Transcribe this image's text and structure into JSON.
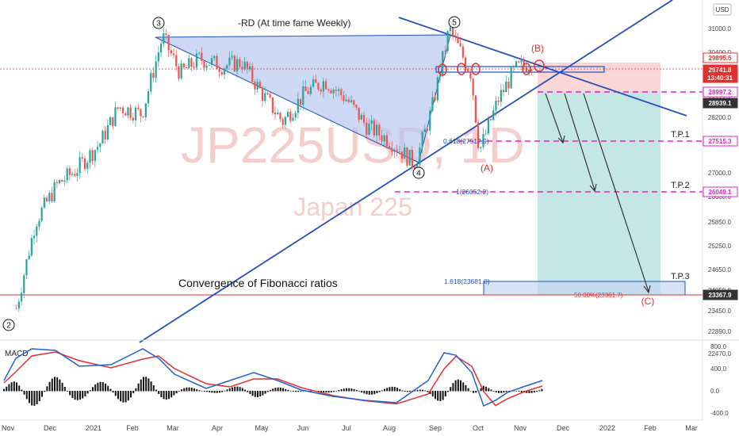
{
  "symbol": "JP225USD, 1D",
  "instrument": "Japan 225",
  "currency": "USD",
  "header_note": "-RD (At time fame Weekly)",
  "indicator_label": "MACD",
  "convergence_label": "Convergence of Fibonacci ratios",
  "price_axis_ticks": [
    "31000.0",
    "30400.0",
    "29800.0",
    "28600.0",
    "28200.0",
    "27600.0",
    "27000.0",
    "26600.0",
    "25850.0",
    "25250.0",
    "24650.0",
    "24050.0",
    "23450.0",
    "22890.0",
    "22470.0"
  ],
  "price_badges": [
    {
      "value": "29895.5",
      "kind": "outline"
    },
    {
      "value": "29741.8",
      "kind": "solid"
    },
    {
      "value": "13:40:31",
      "kind": "solid"
    },
    {
      "value": "28997.2",
      "kind": "outline"
    },
    {
      "value": "28939.1",
      "kind": "dark"
    },
    {
      "value": "27515.3",
      "kind": "outline"
    },
    {
      "value": "26049.1",
      "kind": "outline"
    },
    {
      "value": "23367.9",
      "kind": "dark"
    }
  ],
  "macd_ticks": [
    "800.0",
    "400.0",
    "0.0",
    "-400.0"
  ],
  "time_axis": [
    "Nov",
    "Dec",
    "2021",
    "Feb",
    "Mar",
    "Apr",
    "May",
    "Jun",
    "Jul",
    "Aug",
    "Sep",
    "Oct",
    "Nov",
    "Dec",
    "2022",
    "Feb",
    "Mar"
  ],
  "wave_labels": [
    "2",
    "3",
    "4",
    "5"
  ],
  "corrective_labels": [
    "(A)",
    "(B)",
    "(C)"
  ],
  "targets": [
    "T.P.1",
    "T.P.2",
    "T.P.3"
  ],
  "fib_labels": [
    "0.618(27517.9)",
    "1(26052.2)",
    "1.618(23681.0)",
    "50.00%(23361.7)"
  ],
  "colors": {
    "red": "#e03030",
    "blue": "#2050c0",
    "magenta": "#e020c0",
    "green": "#b2dfdb",
    "pink": "#f8c8c8",
    "candle_up": "#26a69a",
    "candle_down": "#ef5350"
  },
  "chart_data": {
    "type": "candlestick",
    "title": "JP225USD, 1D",
    "ylim": [
      22300,
      31300
    ],
    "close_path": [
      [
        "2020-11-01",
        23050
      ],
      [
        "2020-11-15",
        25400
      ],
      [
        "2020-12-01",
        26400
      ],
      [
        "2020-12-15",
        26800
      ],
      [
        "2021-01-01",
        27500
      ],
      [
        "2021-01-15",
        28500
      ],
      [
        "2021-02-01",
        28300
      ],
      [
        "2021-02-16",
        30400
      ],
      [
        "2021-03-01",
        29400
      ],
      [
        "2021-03-15",
        29800
      ],
      [
        "2021-04-01",
        29600
      ],
      [
        "2021-04-15",
        29700
      ],
      [
        "2021-05-01",
        28800
      ],
      [
        "2021-05-15",
        28100
      ],
      [
        "2021-06-01",
        28900
      ],
      [
        "2021-06-15",
        29200
      ],
      [
        "2021-07-01",
        28700
      ],
      [
        "2021-07-15",
        28000
      ],
      [
        "2021-08-01",
        27600
      ],
      [
        "2021-08-20",
        26950
      ],
      [
        "2021-09-01",
        28400
      ],
      [
        "2021-09-14",
        30600
      ],
      [
        "2021-09-30",
        29400
      ],
      [
        "2021-10-06",
        27300
      ],
      [
        "2021-10-20",
        28700
      ],
      [
        "2021-11-01",
        29500
      ],
      [
        "2021-11-15",
        29741.8
      ]
    ],
    "levels": {
      "entry": 28997.2,
      "stop": 29895.5,
      "tp1": 27515.3,
      "tp2": 26049.1,
      "tp3": 23367.9,
      "current": 29741.8
    }
  }
}
